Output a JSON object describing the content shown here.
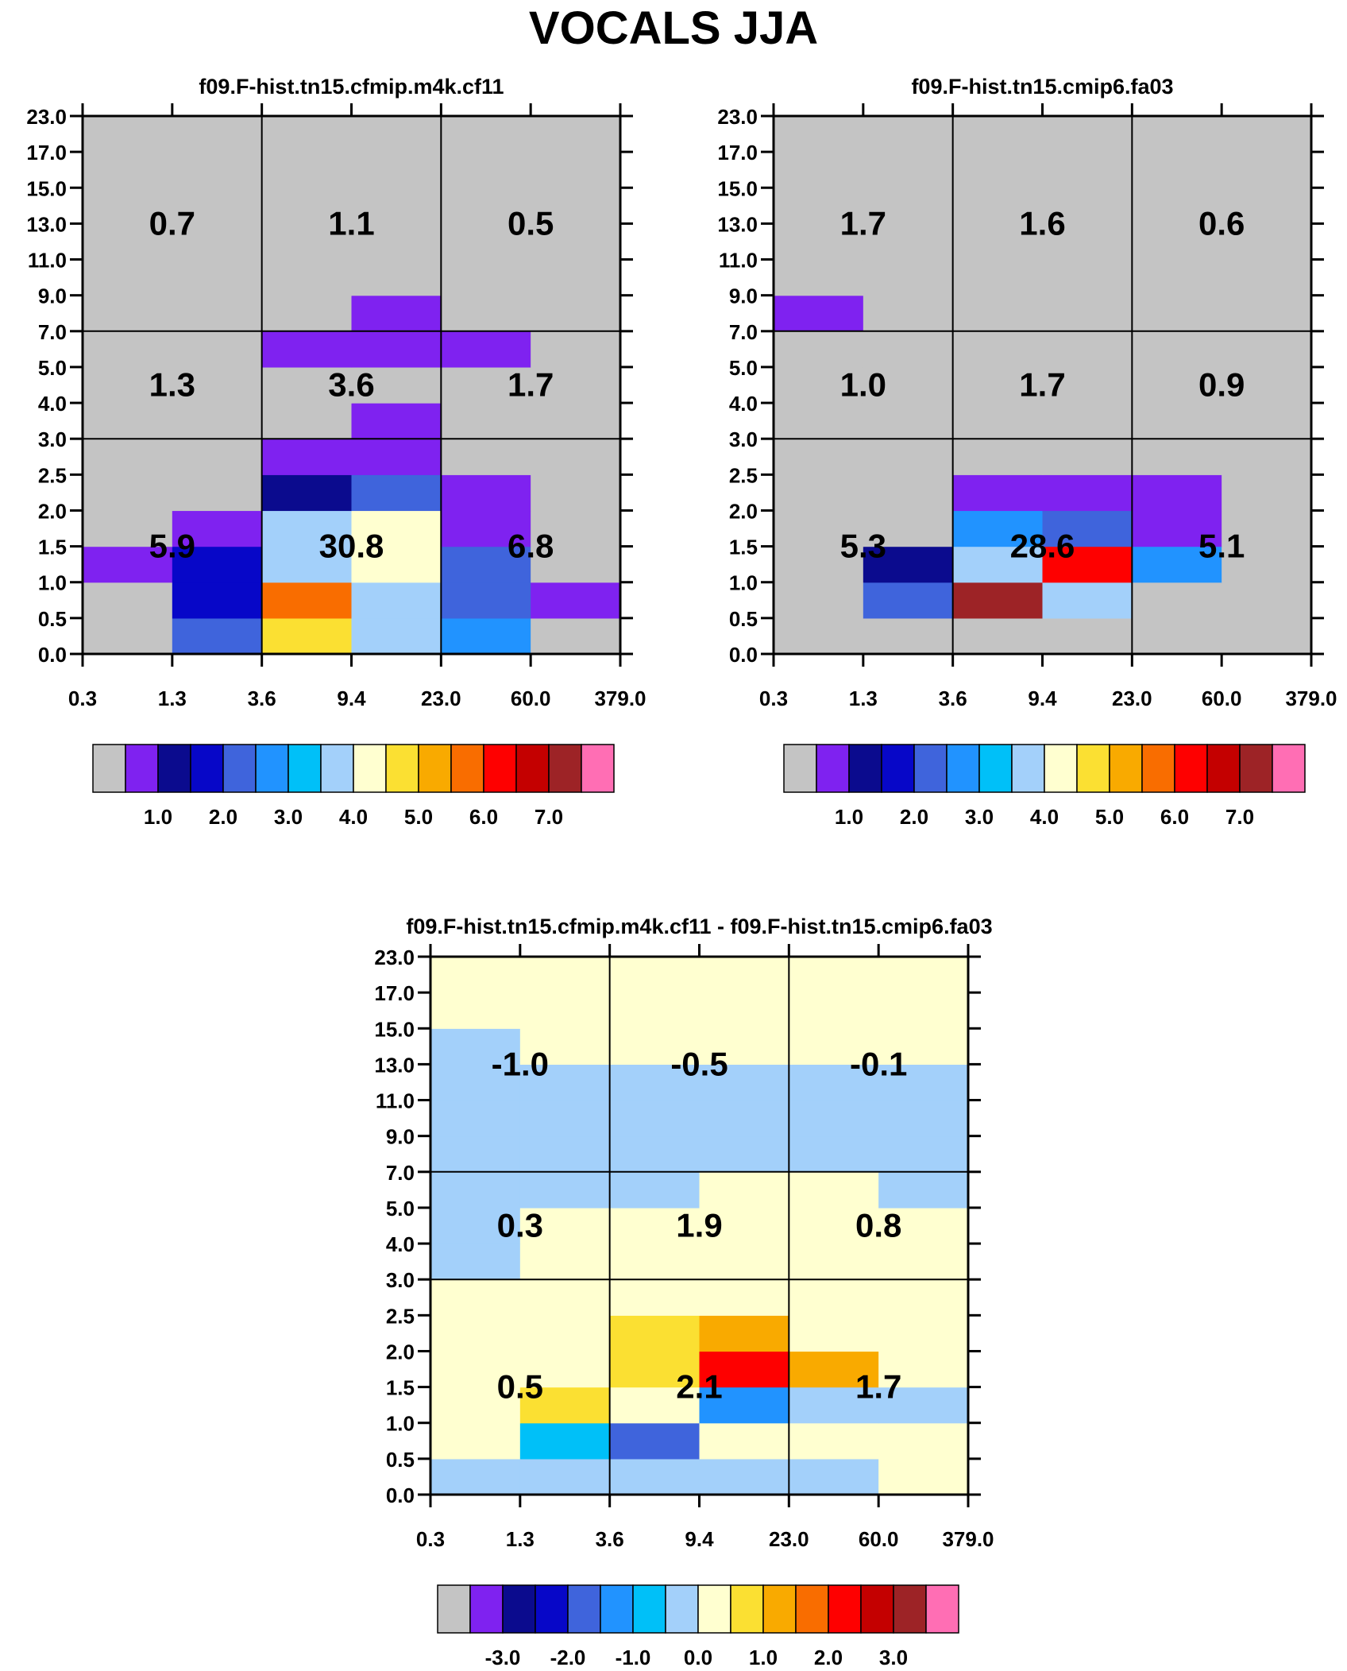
{
  "page_title": "VOCALS JJA",
  "palette": [
    "#c4c4c4",
    "#7f22f0",
    "#0b0b8e",
    "#0707c8",
    "#3f64dc",
    "#2193ff",
    "#00c0f8",
    "#a3d0fa",
    "#ffffd0",
    "#fbe032",
    "#f9aa00",
    "#f96d00",
    "#fe0000",
    "#c40000",
    "#9d2326",
    "#ff6eb4"
  ],
  "chart_data": [
    {
      "type": "heatmap",
      "title": "f09.F-hist.tn15.cfmip.m4k.cf11",
      "x_ticks": [
        "0.3",
        "1.3",
        "3.6",
        "9.4",
        "23.0",
        "60.0",
        "379.0"
      ],
      "y_ticks": [
        "0.0",
        "0.5",
        "1.0",
        "1.5",
        "2.0",
        "2.5",
        "3.0",
        "4.0",
        "5.0",
        "7.0",
        "9.0",
        "11.0",
        "13.0",
        "15.0",
        "17.0",
        "23.0"
      ],
      "cells": [
        [
          0,
          4,
          9,
          7,
          5,
          0
        ],
        [
          0,
          3,
          11,
          7,
          4,
          1
        ],
        [
          1,
          3,
          7,
          8,
          4,
          0
        ],
        [
          0,
          1,
          7,
          8,
          1,
          0
        ],
        [
          0,
          0,
          2,
          4,
          1,
          0
        ],
        [
          0,
          0,
          1,
          1,
          0,
          0
        ],
        [
          0,
          0,
          0,
          1,
          0,
          0
        ],
        [
          0,
          0,
          0,
          0,
          0,
          0
        ],
        [
          0,
          0,
          1,
          1,
          1,
          0
        ],
        [
          0,
          0,
          0,
          1,
          0,
          0
        ],
        [
          0,
          0,
          0,
          0,
          0,
          0
        ],
        [
          0,
          0,
          0,
          0,
          0,
          0
        ],
        [
          0,
          0,
          0,
          0,
          0,
          0
        ],
        [
          0,
          0,
          0,
          0,
          0,
          0
        ],
        [
          0,
          0,
          0,
          0,
          0,
          0
        ]
      ],
      "region_labels": [
        {
          "col": 0,
          "row": 0,
          "value": "5.9"
        },
        {
          "col": 1,
          "row": 0,
          "value": "30.8"
        },
        {
          "col": 2,
          "row": 0,
          "value": "6.8"
        },
        {
          "col": 0,
          "row": 1,
          "value": "1.3"
        },
        {
          "col": 1,
          "row": 1,
          "value": "3.6"
        },
        {
          "col": 2,
          "row": 1,
          "value": "1.7"
        },
        {
          "col": 0,
          "row": 2,
          "value": "0.7"
        },
        {
          "col": 1,
          "row": 2,
          "value": "1.1"
        },
        {
          "col": 2,
          "row": 2,
          "value": "0.5"
        }
      ],
      "colorbar_labels": [
        "1.0",
        "2.0",
        "3.0",
        "4.0",
        "5.0",
        "6.0",
        "7.0"
      ]
    },
    {
      "type": "heatmap",
      "title": "f09.F-hist.tn15.cmip6.fa03",
      "x_ticks": [
        "0.3",
        "1.3",
        "3.6",
        "9.4",
        "23.0",
        "60.0",
        "379.0"
      ],
      "y_ticks": [
        "0.0",
        "0.5",
        "1.0",
        "1.5",
        "2.0",
        "2.5",
        "3.0",
        "4.0",
        "5.0",
        "7.0",
        "9.0",
        "11.0",
        "13.0",
        "15.0",
        "17.0",
        "23.0"
      ],
      "cells": [
        [
          0,
          0,
          0,
          0,
          0,
          0
        ],
        [
          0,
          4,
          14,
          7,
          0,
          0
        ],
        [
          0,
          2,
          7,
          12,
          5,
          0
        ],
        [
          0,
          0,
          5,
          4,
          1,
          0
        ],
        [
          0,
          0,
          1,
          1,
          1,
          0
        ],
        [
          0,
          0,
          0,
          0,
          0,
          0
        ],
        [
          0,
          0,
          0,
          0,
          0,
          0
        ],
        [
          0,
          0,
          0,
          0,
          0,
          0
        ],
        [
          0,
          0,
          0,
          0,
          0,
          0
        ],
        [
          1,
          0,
          0,
          0,
          0,
          0
        ],
        [
          0,
          0,
          0,
          0,
          0,
          0
        ],
        [
          0,
          0,
          0,
          0,
          0,
          0
        ],
        [
          0,
          0,
          0,
          0,
          0,
          0
        ],
        [
          0,
          0,
          0,
          0,
          0,
          0
        ],
        [
          0,
          0,
          0,
          0,
          0,
          0
        ]
      ],
      "region_labels": [
        {
          "col": 0,
          "row": 0,
          "value": "5.3"
        },
        {
          "col": 1,
          "row": 0,
          "value": "28.6"
        },
        {
          "col": 2,
          "row": 0,
          "value": "5.1"
        },
        {
          "col": 0,
          "row": 1,
          "value": "1.0"
        },
        {
          "col": 1,
          "row": 1,
          "value": "1.7"
        },
        {
          "col": 2,
          "row": 1,
          "value": "0.9"
        },
        {
          "col": 0,
          "row": 2,
          "value": "1.7"
        },
        {
          "col": 1,
          "row": 2,
          "value": "1.6"
        },
        {
          "col": 2,
          "row": 2,
          "value": "0.6"
        }
      ],
      "colorbar_labels": [
        "1.0",
        "2.0",
        "3.0",
        "4.0",
        "5.0",
        "6.0",
        "7.0"
      ]
    },
    {
      "type": "heatmap",
      "title": "f09.F-hist.tn15.cfmip.m4k.cf11 - f09.F-hist.tn15.cmip6.fa03",
      "x_ticks": [
        "0.3",
        "1.3",
        "3.6",
        "9.4",
        "23.0",
        "60.0",
        "379.0"
      ],
      "y_ticks": [
        "0.0",
        "0.5",
        "1.0",
        "1.5",
        "2.0",
        "2.5",
        "3.0",
        "4.0",
        "5.0",
        "7.0",
        "9.0",
        "11.0",
        "13.0",
        "15.0",
        "17.0",
        "23.0"
      ],
      "cells": [
        [
          7,
          7,
          7,
          7,
          7,
          8
        ],
        [
          8,
          6,
          4,
          8,
          8,
          8
        ],
        [
          8,
          9,
          8,
          5,
          7,
          7
        ],
        [
          8,
          8,
          9,
          12,
          10,
          8
        ],
        [
          8,
          8,
          9,
          10,
          8,
          8
        ],
        [
          8,
          8,
          8,
          8,
          8,
          8
        ],
        [
          7,
          8,
          8,
          8,
          8,
          8
        ],
        [
          7,
          8,
          8,
          8,
          8,
          8
        ],
        [
          7,
          7,
          7,
          8,
          8,
          7
        ],
        [
          7,
          7,
          7,
          7,
          7,
          7
        ],
        [
          7,
          7,
          7,
          7,
          7,
          7
        ],
        [
          7,
          7,
          7,
          7,
          7,
          7
        ],
        [
          7,
          8,
          8,
          8,
          8,
          8
        ],
        [
          8,
          8,
          8,
          8,
          8,
          8
        ],
        [
          8,
          8,
          8,
          8,
          8,
          8
        ]
      ],
      "region_labels": [
        {
          "col": 0,
          "row": 0,
          "value": "0.5"
        },
        {
          "col": 1,
          "row": 0,
          "value": "2.1"
        },
        {
          "col": 2,
          "row": 0,
          "value": "1.7"
        },
        {
          "col": 0,
          "row": 1,
          "value": "0.3"
        },
        {
          "col": 1,
          "row": 1,
          "value": "1.9"
        },
        {
          "col": 2,
          "row": 1,
          "value": "0.8"
        },
        {
          "col": 0,
          "row": 2,
          "value": "-1.0"
        },
        {
          "col": 1,
          "row": 2,
          "value": "-0.5"
        },
        {
          "col": 2,
          "row": 2,
          "value": "-0.1"
        }
      ],
      "colorbar_labels": [
        "-3.0",
        "-2.0",
        "-1.0",
        "0.0",
        "1.0",
        "2.0",
        "3.0"
      ]
    }
  ]
}
